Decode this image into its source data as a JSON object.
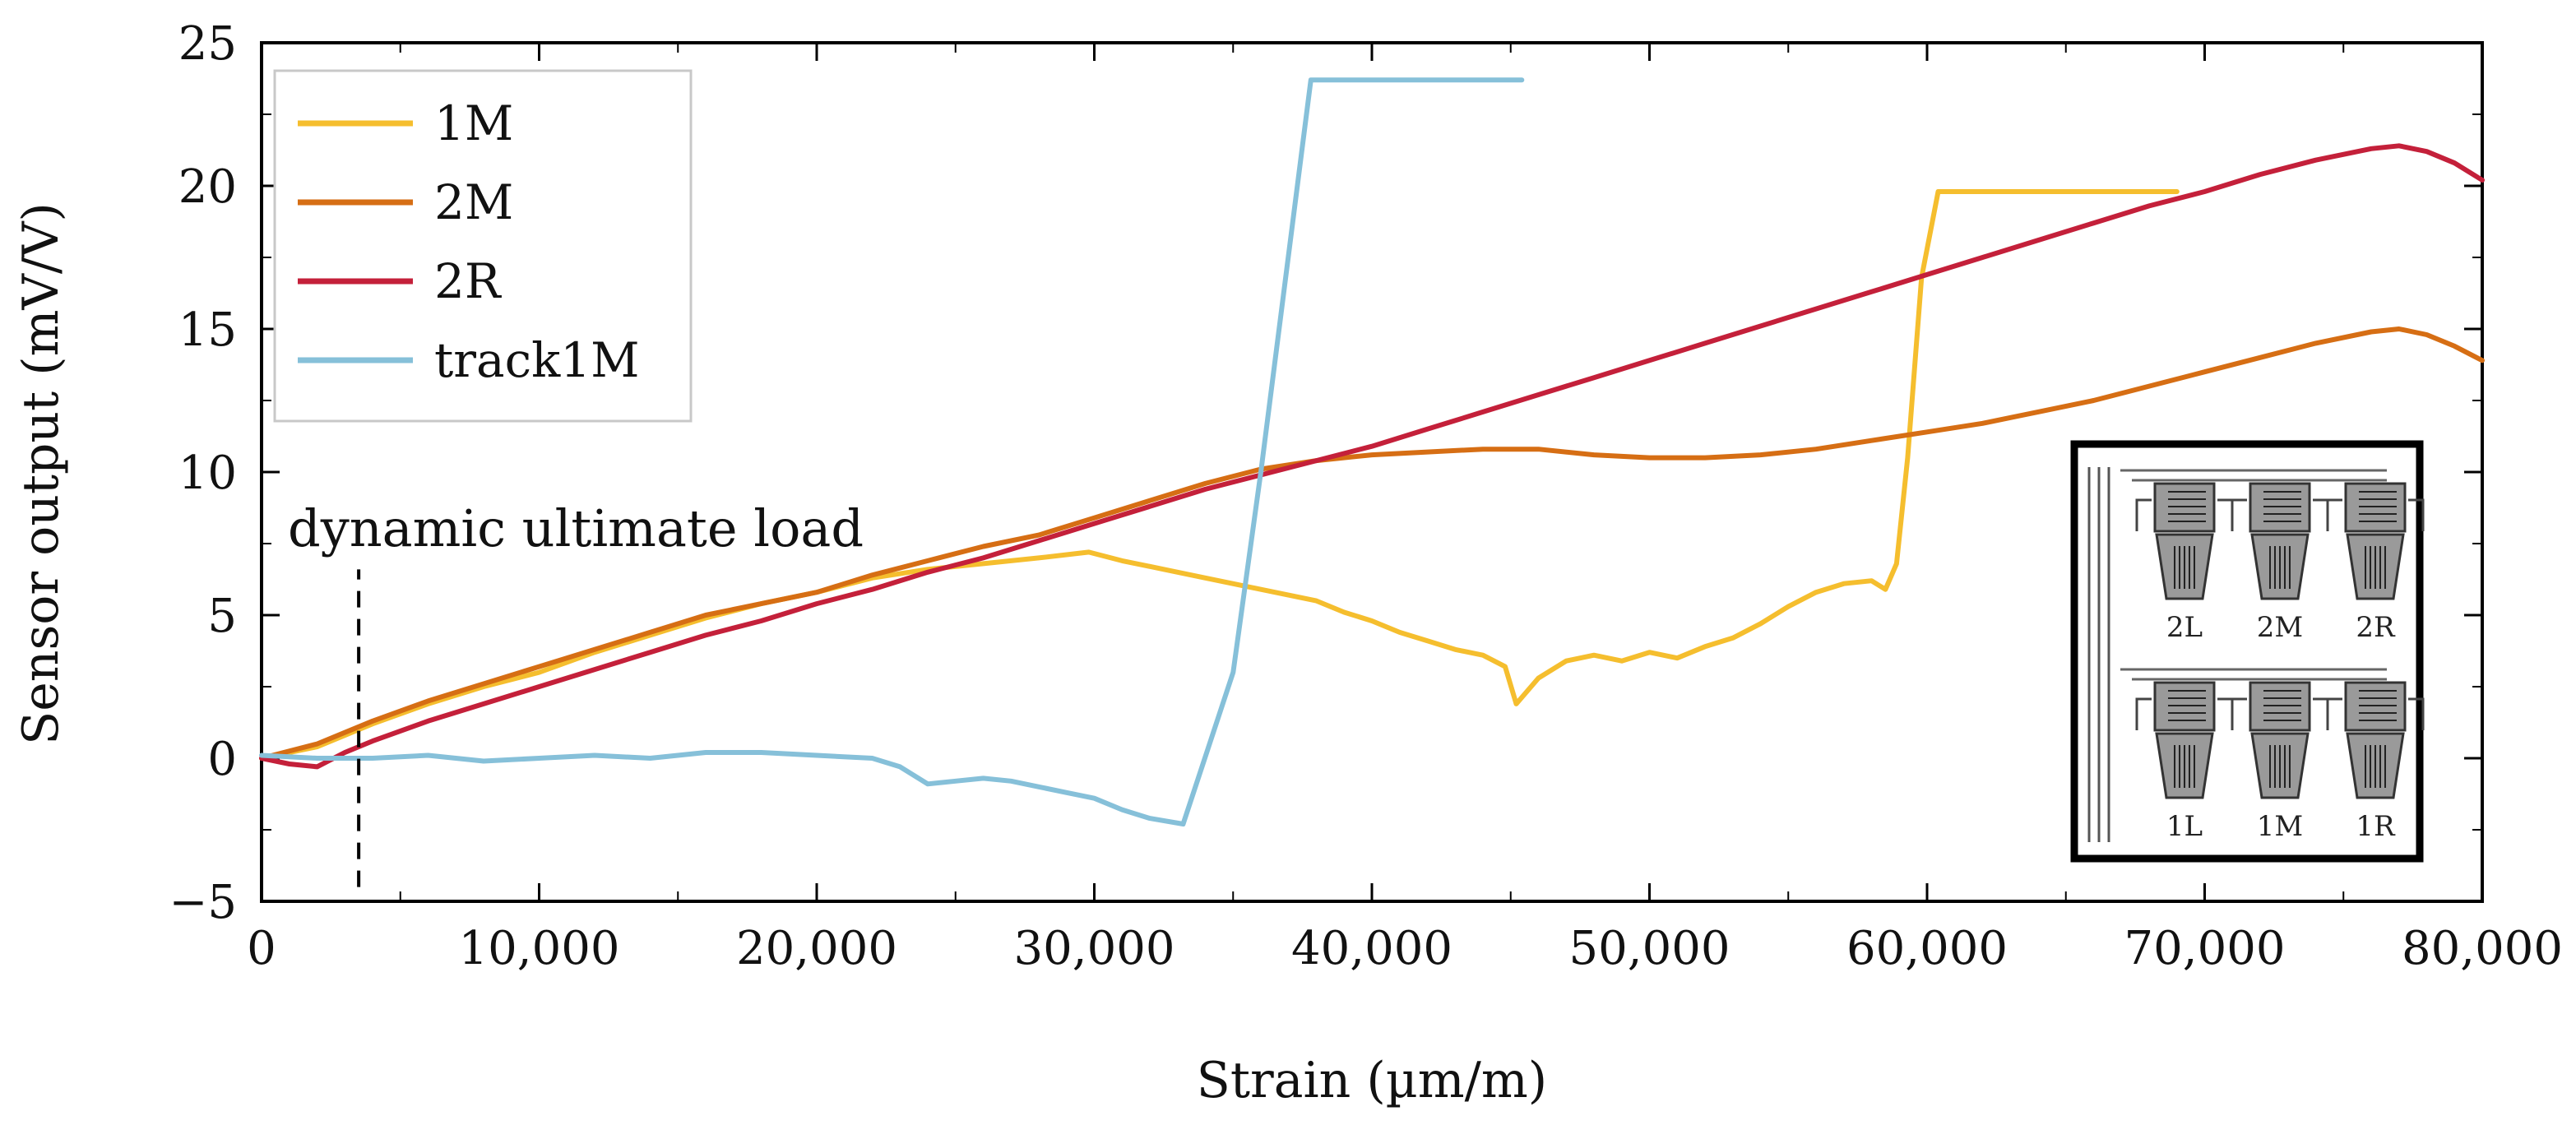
{
  "chart_data": {
    "type": "line",
    "title": "",
    "xlabel": "Strain (µm/m)",
    "ylabel": "Sensor output (mV/V)",
    "xlim": [
      0,
      80000
    ],
    "ylim": [
      -5,
      25
    ],
    "xticks": [
      0,
      10000,
      20000,
      30000,
      40000,
      50000,
      60000,
      70000,
      80000
    ],
    "xtick_labels": [
      "0",
      "10,000",
      "20,000",
      "30,000",
      "40,000",
      "50,000",
      "60,000",
      "70,000",
      "80,000"
    ],
    "yticks": [
      -5,
      0,
      5,
      10,
      15,
      20,
      25
    ],
    "ytick_labels": [
      "−5",
      "0",
      "5",
      "10",
      "15",
      "20",
      "25"
    ],
    "grid": false,
    "legend_position": "top-left",
    "series": [
      {
        "name": "1M",
        "color": "#F5BE2E",
        "x": [
          0,
          2000,
          4000,
          6000,
          8000,
          10000,
          12000,
          14000,
          16000,
          18000,
          20000,
          22000,
          24000,
          26000,
          28000,
          29800,
          31000,
          32500,
          34000,
          36000,
          38000,
          39000,
          40000,
          41000,
          42000,
          43000,
          44000,
          44800,
          45200,
          46000,
          47000,
          48000,
          49000,
          50000,
          51000,
          52000,
          53000,
          54000,
          55000,
          56000,
          57000,
          58000,
          58500,
          58900,
          59300,
          59800,
          60400,
          62000,
          65000,
          69000
        ],
        "y": [
          0,
          0.4,
          1.2,
          1.9,
          2.5,
          3.0,
          3.7,
          4.3,
          4.9,
          5.4,
          5.8,
          6.3,
          6.6,
          6.8,
          7.0,
          7.2,
          6.9,
          6.6,
          6.3,
          5.9,
          5.5,
          5.1,
          4.8,
          4.4,
          4.1,
          3.8,
          3.6,
          3.2,
          1.9,
          2.8,
          3.4,
          3.6,
          3.4,
          3.7,
          3.5,
          3.9,
          4.2,
          4.7,
          5.3,
          5.8,
          6.1,
          6.2,
          5.9,
          6.8,
          10.5,
          16.8,
          19.8,
          19.8,
          19.8,
          19.8
        ]
      },
      {
        "name": "2M",
        "color": "#D66E14",
        "x": [
          0,
          2000,
          4000,
          6000,
          8000,
          10000,
          12000,
          14000,
          16000,
          18000,
          20000,
          22000,
          24000,
          26000,
          28000,
          30000,
          32000,
          34000,
          36000,
          38000,
          40000,
          42000,
          44000,
          46000,
          48000,
          50000,
          52000,
          54000,
          56000,
          58000,
          60000,
          62000,
          64000,
          66000,
          68000,
          70000,
          72000,
          74000,
          76000,
          77000,
          78000,
          79000,
          80000
        ],
        "y": [
          0,
          0.5,
          1.3,
          2.0,
          2.6,
          3.2,
          3.8,
          4.4,
          5.0,
          5.4,
          5.8,
          6.4,
          6.9,
          7.4,
          7.8,
          8.4,
          9.0,
          9.6,
          10.1,
          10.4,
          10.6,
          10.7,
          10.8,
          10.8,
          10.6,
          10.5,
          10.5,
          10.6,
          10.8,
          11.1,
          11.4,
          11.7,
          12.1,
          12.5,
          13.0,
          13.5,
          14.0,
          14.5,
          14.9,
          15.0,
          14.8,
          14.4,
          13.9
        ]
      },
      {
        "name": "2R",
        "color": "#C4203A",
        "x": [
          0,
          1000,
          2000,
          3000,
          4000,
          6000,
          8000,
          10000,
          12000,
          14000,
          16000,
          18000,
          20000,
          22000,
          24000,
          26000,
          28000,
          30000,
          32000,
          34000,
          36000,
          38000,
          40000,
          42000,
          44000,
          46000,
          48000,
          50000,
          52000,
          54000,
          56000,
          58000,
          60000,
          62000,
          64000,
          66000,
          68000,
          70000,
          72000,
          74000,
          76000,
          77000,
          78000,
          79000,
          80000
        ],
        "y": [
          0,
          -0.2,
          -0.3,
          0.2,
          0.6,
          1.3,
          1.9,
          2.5,
          3.1,
          3.7,
          4.3,
          4.8,
          5.4,
          5.9,
          6.5,
          7.0,
          7.6,
          8.2,
          8.8,
          9.4,
          9.9,
          10.4,
          10.9,
          11.5,
          12.1,
          12.7,
          13.3,
          13.9,
          14.5,
          15.1,
          15.7,
          16.3,
          16.9,
          17.5,
          18.1,
          18.7,
          19.3,
          19.8,
          20.4,
          20.9,
          21.3,
          21.4,
          21.2,
          20.8,
          20.2
        ]
      },
      {
        "name": "track1M",
        "color": "#86C0D9",
        "x": [
          0,
          2000,
          4000,
          6000,
          8000,
          10000,
          12000,
          14000,
          16000,
          18000,
          20000,
          22000,
          23000,
          24000,
          25000,
          26000,
          27000,
          28000,
          29000,
          30000,
          31000,
          32000,
          33200,
          35000,
          36000,
          37800,
          38500,
          42000,
          45400
        ],
        "y": [
          0.1,
          0.0,
          0.0,
          0.1,
          -0.1,
          0.0,
          0.1,
          0.0,
          0.2,
          0.2,
          0.1,
          0.0,
          -0.3,
          -0.9,
          -0.8,
          -0.7,
          -0.8,
          -1.0,
          -1.2,
          -1.4,
          -1.8,
          -2.1,
          -2.3,
          3.0,
          10.0,
          23.7,
          23.7,
          23.7,
          23.7
        ]
      }
    ],
    "annotations": [
      {
        "text": "dynamic ultimate load",
        "x": 3500,
        "y_from": -4.5,
        "y_to": 6.6,
        "style": "dashed"
      }
    ],
    "inset": {
      "top_labels": [
        "2L",
        "2M",
        "2R"
      ],
      "bottom_labels": [
        "1L",
        "1M",
        "1R"
      ]
    }
  }
}
